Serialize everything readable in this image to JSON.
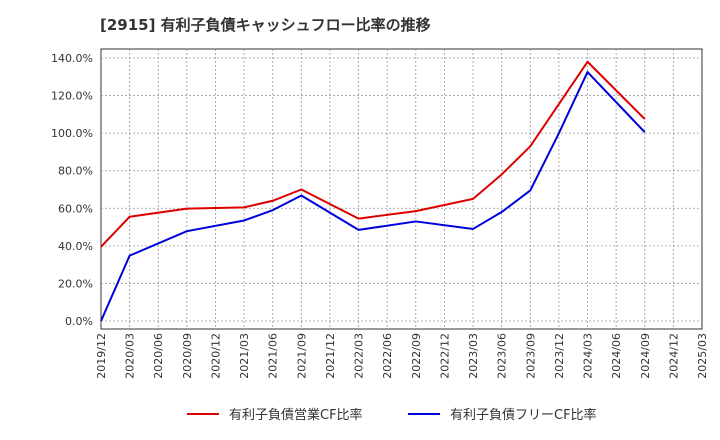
{
  "chart_data": {
    "type": "line",
    "title": "[2915]  有利子負債キャッシュフロー比率の推移",
    "xlabel": "",
    "ylabel": "",
    "ylim": [
      0,
      140
    ],
    "y_ticks": [
      "0.0%",
      "20.0%",
      "40.0%",
      "60.0%",
      "80.0%",
      "100.0%",
      "120.0%",
      "140.0%"
    ],
    "x_ticks": [
      "2019/12",
      "2020/03",
      "2020/06",
      "2020/09",
      "2020/12",
      "2021/03",
      "2021/06",
      "2021/09",
      "2021/12",
      "2022/03",
      "2022/06",
      "2022/09",
      "2022/12",
      "2023/03",
      "2023/06",
      "2023/09",
      "2023/12",
      "2024/03",
      "2024/06",
      "2024/09",
      "2024/12",
      "2025/03"
    ],
    "grid": true,
    "legend": "bottom",
    "series": [
      {
        "name": "有利子負債営業CF比率",
        "color": "#dd0000",
        "x": [
          "2019/12",
          "2020/03",
          "2020/09",
          "2021/03",
          "2021/06",
          "2021/09",
          "2022/03",
          "2022/09",
          "2023/03",
          "2023/06",
          "2023/09",
          "2023/12",
          "2024/03",
          "2024/09"
        ],
        "values": [
          39.5,
          55.5,
          59.8,
          60.5,
          64.0,
          70.0,
          54.5,
          58.5,
          65.0,
          78.0,
          93.0,
          115.5,
          138.0,
          107.5
        ]
      },
      {
        "name": "有利子負債フリーCF比率",
        "color": "#0000dd",
        "x": [
          "2019/12",
          "2020/03",
          "2020/09",
          "2021/03",
          "2021/06",
          "2021/09",
          "2022/03",
          "2022/09",
          "2023/03",
          "2023/06",
          "2023/09",
          "2023/12",
          "2024/03",
          "2024/09"
        ],
        "values": [
          0.0,
          34.8,
          47.8,
          53.5,
          59.0,
          66.8,
          48.5,
          53.0,
          49.0,
          58.0,
          69.5,
          100.0,
          132.5,
          100.5
        ]
      }
    ]
  }
}
